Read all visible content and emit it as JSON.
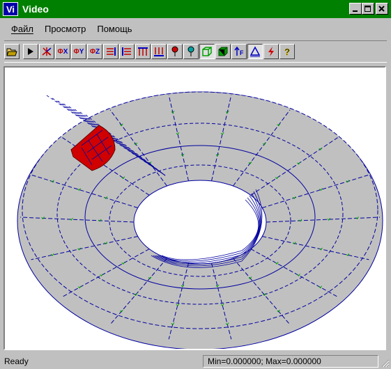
{
  "window": {
    "icon_text": "Vi",
    "title": "Video",
    "controls": {
      "minimize": "_",
      "maximize": "□",
      "close": "X"
    }
  },
  "menu": [
    {
      "label": "Файл"
    },
    {
      "label": "Просмотр"
    },
    {
      "label": "Помощь"
    }
  ],
  "toolbar": {
    "buttons": [
      {
        "name": "open-icon",
        "glyph": ""
      },
      {
        "name": "play-icon",
        "glyph": "▶"
      },
      {
        "name": "axes-icon",
        "glyph": ""
      },
      {
        "name": "rotate-x-icon",
        "glyph": "ΦX"
      },
      {
        "name": "rotate-y-icon",
        "glyph": "ΦY"
      },
      {
        "name": "rotate-z-icon",
        "glyph": "ΦZ"
      },
      {
        "name": "align-right-icon",
        "glyph": "⇶"
      },
      {
        "name": "align-left-icon",
        "glyph": "⬱"
      },
      {
        "name": "arrows-up-icon",
        "glyph": "↑↑↑"
      },
      {
        "name": "arrows-down-icon",
        "glyph": "↓↓↓"
      },
      {
        "name": "pin-red-icon",
        "glyph": ""
      },
      {
        "name": "pin-green-icon",
        "glyph": ""
      },
      {
        "name": "wireframe-cube-icon",
        "glyph": ""
      },
      {
        "name": "solid-cube-icon",
        "glyph": ""
      },
      {
        "name": "force-arrow-icon",
        "glyph": "↑F"
      },
      {
        "name": "triangle-icon",
        "glyph": "△"
      },
      {
        "name": "lightning-icon",
        "glyph": "ϟ"
      },
      {
        "name": "help-icon",
        "glyph": "?"
      }
    ]
  },
  "status": {
    "left": "Ready",
    "right": "Min=0.000000; Max=0.000000"
  },
  "colors": {
    "titlebar": "#008000",
    "mesh_fill": "#c0c0c0",
    "mesh_line": "#0000a0",
    "node_mark": "#00a000",
    "highlight": "#d00000"
  }
}
